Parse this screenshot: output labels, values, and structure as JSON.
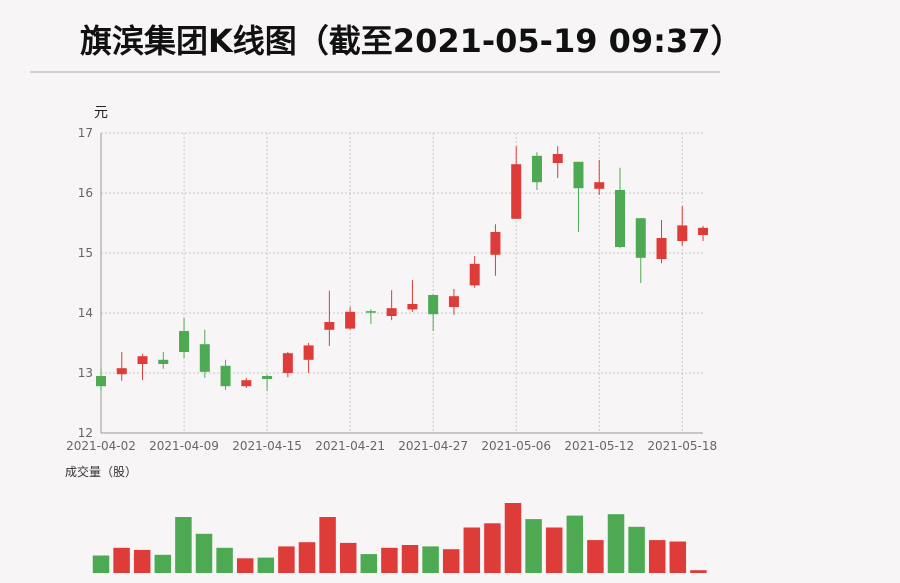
{
  "title": "旗滨集团K线图（截至2021-05-19 09:37）",
  "unit_label": "元",
  "volume_label": "成交量（股）",
  "colors": {
    "up": "#dd3c39",
    "down": "#4daa53",
    "grid": "#c8c8c8",
    "axis": "#999999",
    "text": "#666666"
  },
  "chart_data": {
    "type": "candlestick",
    "ylabel": "元",
    "ylim": [
      12,
      17
    ],
    "yticks": [
      "12",
      "13",
      "14",
      "15",
      "16",
      "17"
    ],
    "x_tick_labels": [
      "2021-04-02",
      "2021-04-09",
      "2021-04-15",
      "2021-04-21",
      "2021-04-27",
      "2021-05-06",
      "2021-05-12",
      "2021-05-18"
    ],
    "grid": true,
    "candles": [
      {
        "open": 12.95,
        "close": 12.78,
        "high": 13.08,
        "low": 12.7
      },
      {
        "open": 12.98,
        "close": 13.08,
        "high": 13.35,
        "low": 12.87
      },
      {
        "open": 13.15,
        "close": 13.28,
        "high": 13.32,
        "low": 12.88
      },
      {
        "open": 13.22,
        "close": 13.15,
        "high": 13.35,
        "low": 13.07
      },
      {
        "open": 13.7,
        "close": 13.35,
        "high": 13.92,
        "low": 13.25
      },
      {
        "open": 13.48,
        "close": 13.02,
        "high": 13.72,
        "low": 12.92
      },
      {
        "open": 13.12,
        "close": 12.78,
        "high": 13.22,
        "low": 12.72
      },
      {
        "open": 12.78,
        "close": 12.88,
        "high": 12.92,
        "low": 12.75
      },
      {
        "open": 12.95,
        "close": 12.9,
        "high": 12.97,
        "low": 12.7
      },
      {
        "open": 13.0,
        "close": 13.33,
        "high": 13.35,
        "low": 12.93
      },
      {
        "open": 13.22,
        "close": 13.46,
        "high": 13.5,
        "low": 13.0
      },
      {
        "open": 13.72,
        "close": 13.85,
        "high": 14.37,
        "low": 13.45
      },
      {
        "open": 13.74,
        "close": 14.02,
        "high": 14.1,
        "low": 13.72
      },
      {
        "open": 14.03,
        "close": 14.01,
        "high": 14.06,
        "low": 13.82
      },
      {
        "open": 13.95,
        "close": 14.08,
        "high": 14.38,
        "low": 13.88
      },
      {
        "open": 14.06,
        "close": 14.15,
        "high": 14.55,
        "low": 14.02
      },
      {
        "open": 14.3,
        "close": 13.98,
        "high": 14.31,
        "low": 13.7
      },
      {
        "open": 14.1,
        "close": 14.28,
        "high": 14.4,
        "low": 13.97
      },
      {
        "open": 14.46,
        "close": 14.82,
        "high": 14.95,
        "low": 14.42
      },
      {
        "open": 14.97,
        "close": 15.35,
        "high": 15.48,
        "low": 14.62
      },
      {
        "open": 15.57,
        "close": 16.48,
        "high": 16.78,
        "low": 15.57
      },
      {
        "open": 16.62,
        "close": 16.18,
        "high": 16.68,
        "low": 16.05
      },
      {
        "open": 16.5,
        "close": 16.65,
        "high": 16.78,
        "low": 16.25
      },
      {
        "open": 16.52,
        "close": 16.08,
        "high": 16.52,
        "low": 15.35
      },
      {
        "open": 16.07,
        "close": 16.18,
        "high": 16.55,
        "low": 15.97
      },
      {
        "open": 16.05,
        "close": 15.1,
        "high": 16.42,
        "low": 15.08
      },
      {
        "open": 15.58,
        "close": 14.92,
        "high": 15.58,
        "low": 14.5
      },
      {
        "open": 14.9,
        "close": 15.25,
        "high": 15.55,
        "low": 14.83
      },
      {
        "open": 15.2,
        "close": 15.46,
        "high": 15.78,
        "low": 15.12
      },
      {
        "open": 15.3,
        "close": 15.42,
        "high": 15.45,
        "low": 15.2
      }
    ],
    "volume_relative": [
      0.25,
      0.36,
      0.33,
      0.26,
      0.8,
      0.56,
      0.36,
      0.21,
      0.22,
      0.38,
      0.44,
      0.8,
      0.43,
      0.27,
      0.36,
      0.4,
      0.38,
      0.34,
      0.65,
      0.71,
      1.0,
      0.77,
      0.65,
      0.82,
      0.47,
      0.84,
      0.66,
      0.47,
      0.45,
      0.04
    ]
  }
}
